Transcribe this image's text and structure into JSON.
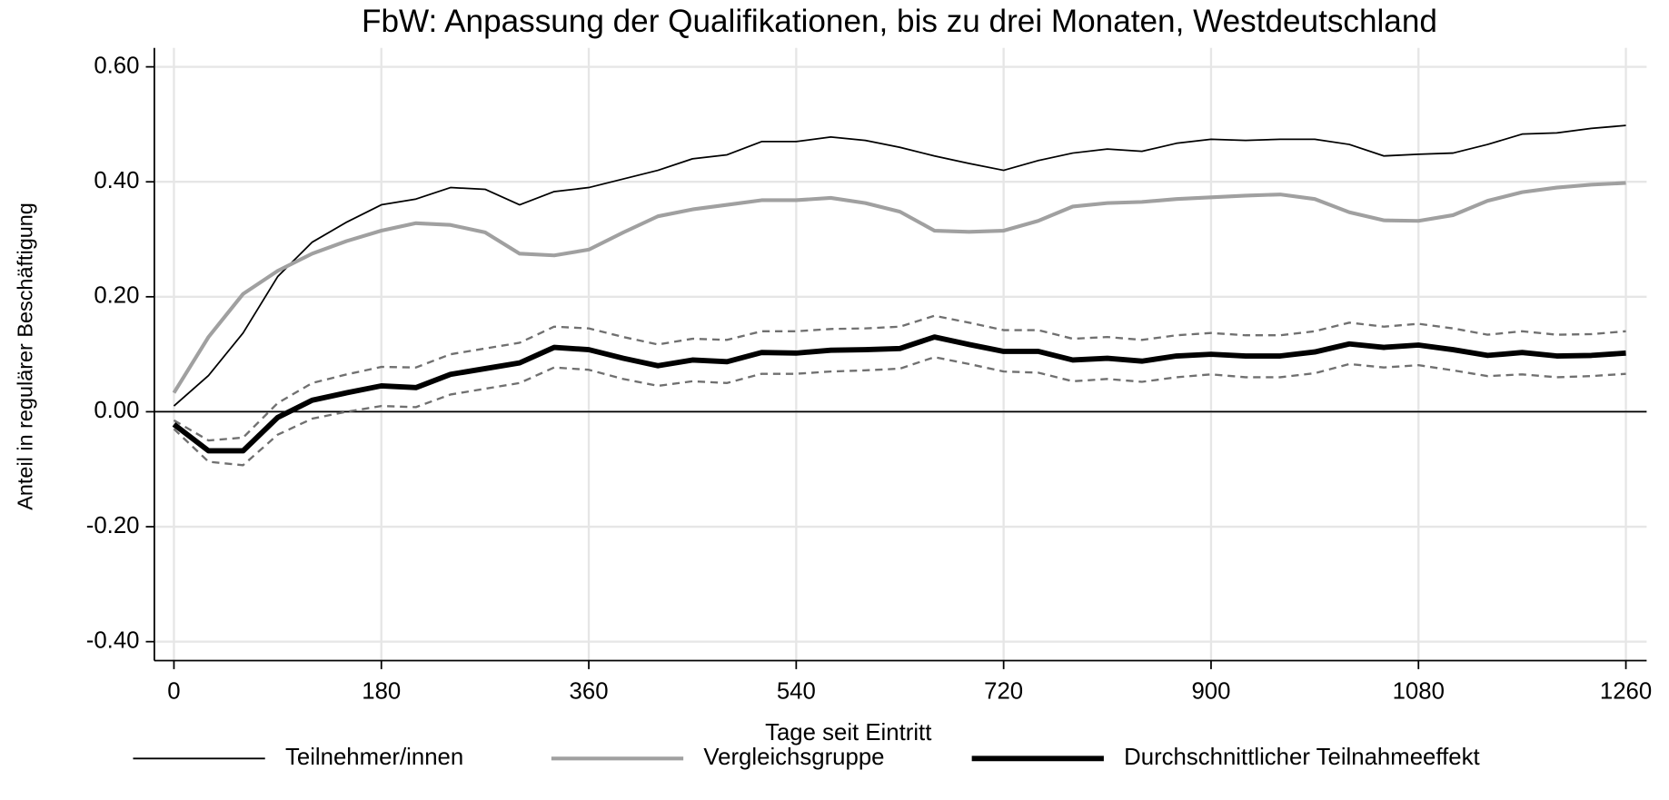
{
  "chart_data": {
    "type": "line",
    "title": "FbW: Anpassung der Qualifikationen, bis zu drei Monaten, Westdeutschland",
    "xlabel": "Tage seit Eintritt",
    "ylabel": "Anteil in regulärer Beschäftigung",
    "x": [
      0,
      30,
      60,
      90,
      120,
      150,
      180,
      210,
      240,
      270,
      300,
      330,
      360,
      390,
      420,
      450,
      480,
      510,
      540,
      570,
      600,
      630,
      660,
      690,
      720,
      750,
      780,
      810,
      840,
      870,
      900,
      930,
      960,
      990,
      1020,
      1050,
      1080,
      1110,
      1140,
      1170,
      1200,
      1230,
      1260
    ],
    "series": [
      {
        "name": "Teilnehmer/innen",
        "color": "#000000",
        "width": 1.5,
        "dash": "none",
        "values": [
          0.01,
          0.063,
          0.137,
          0.235,
          0.295,
          0.33,
          0.36,
          0.37,
          0.39,
          0.387,
          0.36,
          0.383,
          0.39,
          0.405,
          0.42,
          0.44,
          0.447,
          0.47,
          0.47,
          0.478,
          0.472,
          0.46,
          0.445,
          0.432,
          0.42,
          0.437,
          0.45,
          0.457,
          0.453,
          0.467,
          0.474,
          0.472,
          0.474,
          0.474,
          0.465,
          0.445,
          0.448,
          0.45,
          0.465,
          0.483,
          0.485,
          0.493,
          0.498
        ]
      },
      {
        "name": "Vergleichsgruppe",
        "color": "#a0a0a0",
        "width": 3.5,
        "dash": "none",
        "values": [
          0.033,
          0.13,
          0.205,
          0.245,
          0.275,
          0.297,
          0.315,
          0.328,
          0.325,
          0.312,
          0.275,
          0.272,
          0.282,
          0.312,
          0.34,
          0.352,
          0.36,
          0.368,
          0.368,
          0.372,
          0.363,
          0.348,
          0.315,
          0.313,
          0.315,
          0.332,
          0.357,
          0.363,
          0.365,
          0.37,
          0.373,
          0.376,
          0.378,
          0.37,
          0.347,
          0.333,
          0.332,
          0.342,
          0.367,
          0.382,
          0.39,
          0.395,
          0.398
        ]
      },
      {
        "name": "Durchschnittlicher Teilnahmeeffekt",
        "color": "#000000",
        "width": 5,
        "dash": "none",
        "values": [
          -0.022,
          -0.068,
          -0.068,
          -0.01,
          0.02,
          0.033,
          0.045,
          0.042,
          0.065,
          0.075,
          0.085,
          0.112,
          0.108,
          0.093,
          0.08,
          0.09,
          0.087,
          0.103,
          0.102,
          0.107,
          0.108,
          0.11,
          0.13,
          0.117,
          0.105,
          0.105,
          0.09,
          0.093,
          0.088,
          0.097,
          0.1,
          0.097,
          0.097,
          0.104,
          0.118,
          0.112,
          0.116,
          0.108,
          0.098,
          0.103,
          0.097,
          0.098,
          0.102
        ]
      },
      {
        "color": "#707070",
        "width": 2,
        "dash": "7 5",
        "values": [
          -0.015,
          -0.05,
          -0.045,
          0.015,
          0.05,
          0.065,
          0.078,
          0.077,
          0.1,
          0.11,
          0.12,
          0.148,
          0.145,
          0.13,
          0.117,
          0.127,
          0.125,
          0.14,
          0.14,
          0.144,
          0.145,
          0.148,
          0.167,
          0.155,
          0.142,
          0.142,
          0.127,
          0.13,
          0.125,
          0.133,
          0.137,
          0.133,
          0.133,
          0.14,
          0.155,
          0.148,
          0.153,
          0.145,
          0.134,
          0.14,
          0.134,
          0.135,
          0.14
        ]
      },
      {
        "color": "#707070",
        "width": 2,
        "dash": "7 5",
        "values": [
          -0.03,
          -0.087,
          -0.093,
          -0.04,
          -0.012,
          0.0,
          0.01,
          0.008,
          0.03,
          0.04,
          0.05,
          0.077,
          0.073,
          0.057,
          0.045,
          0.053,
          0.05,
          0.066,
          0.066,
          0.07,
          0.072,
          0.075,
          0.095,
          0.083,
          0.07,
          0.068,
          0.053,
          0.057,
          0.052,
          0.06,
          0.065,
          0.06,
          0.06,
          0.067,
          0.083,
          0.077,
          0.081,
          0.072,
          0.062,
          0.065,
          0.06,
          0.062,
          0.066
        ]
      }
    ],
    "xlim": [
      -17,
      1278
    ],
    "xticks": [
      0,
      180,
      360,
      540,
      720,
      900,
      1080,
      1260
    ],
    "ylim": [
      -0.433,
      0.633
    ],
    "yticks": [
      {
        "value": -0.4,
        "label": "-0.40"
      },
      {
        "value": -0.2,
        "label": "-0.20"
      },
      {
        "value": 0,
        "label": "0.00"
      },
      {
        "value": 0.2,
        "label": "0.20"
      },
      {
        "value": 0.4,
        "label": "0.40"
      },
      {
        "value": 0.6,
        "label": "0.60"
      }
    ],
    "reference_line": 0,
    "grid": true,
    "legend": "bottom"
  }
}
